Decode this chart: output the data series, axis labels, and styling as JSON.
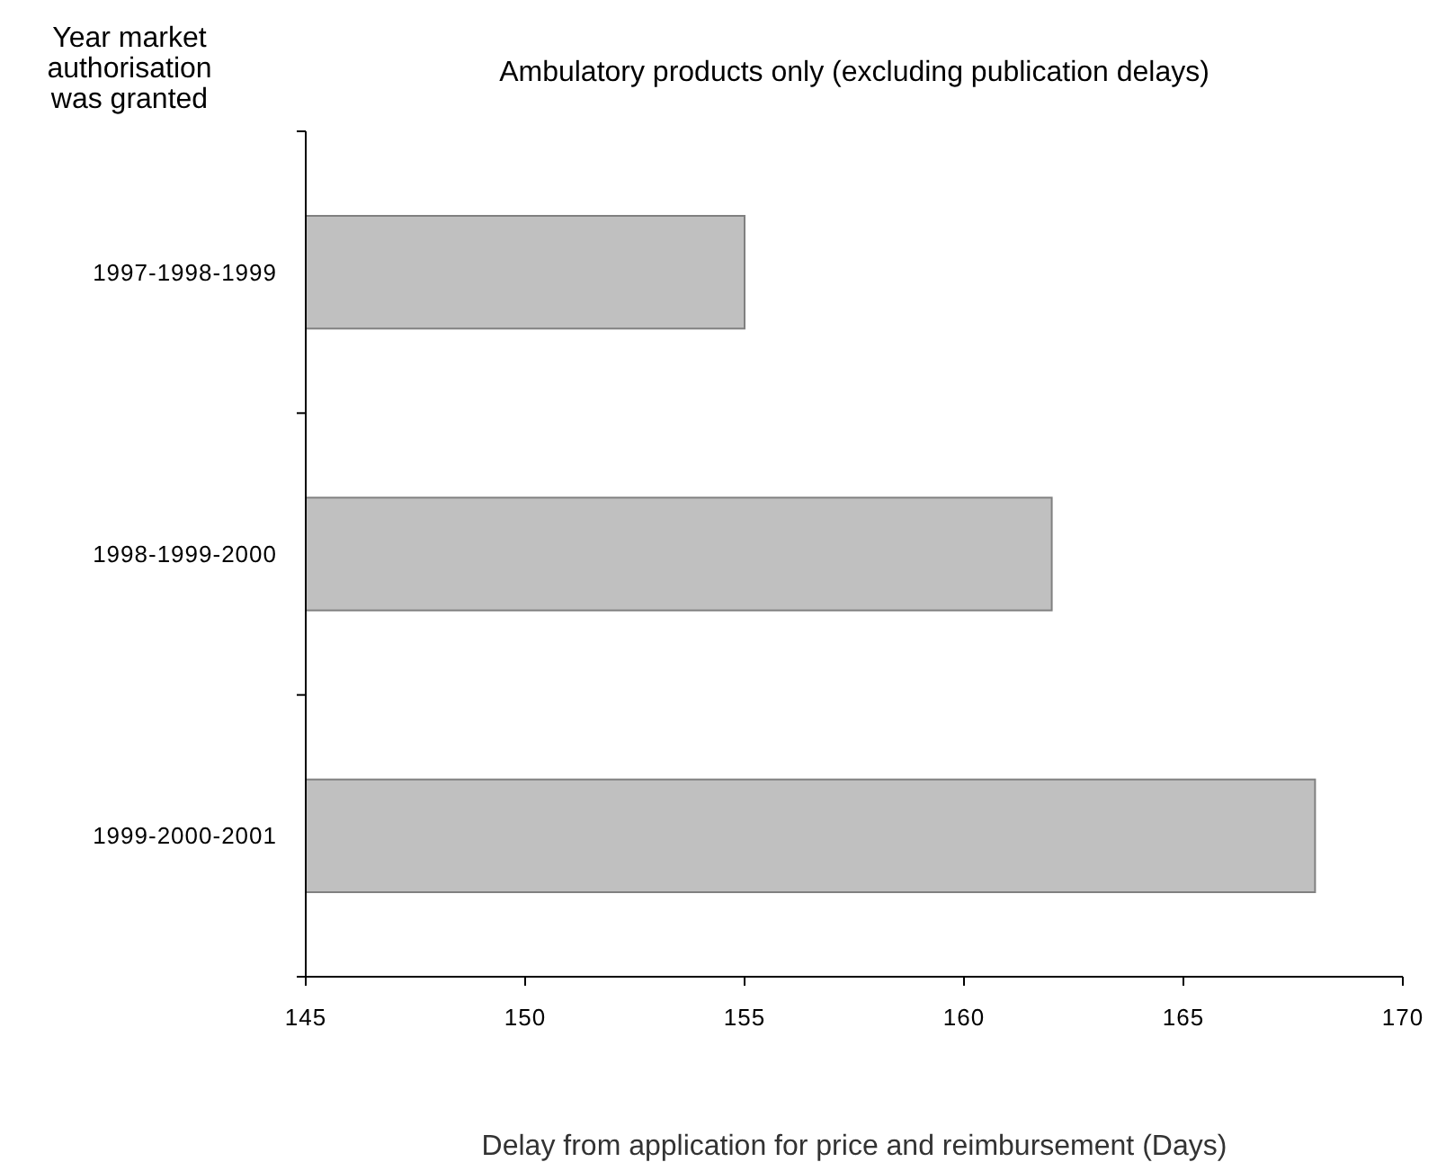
{
  "chart_data": {
    "type": "bar",
    "orientation": "horizontal",
    "title": "Ambulatory products only (excluding publication delays)",
    "ylabel": "Year market authorisation was granted",
    "xlabel": "Delay from application for price and reimbursement (Days)",
    "categories": [
      "1997-1998-1999",
      "1998-1999-2000",
      "1999-2000-2001"
    ],
    "values": [
      155,
      162,
      168
    ],
    "color": "#c0c0c0",
    "xlim": [
      145,
      170
    ],
    "xticks": [
      145,
      150,
      155,
      160,
      165,
      170
    ],
    "grid": false
  }
}
